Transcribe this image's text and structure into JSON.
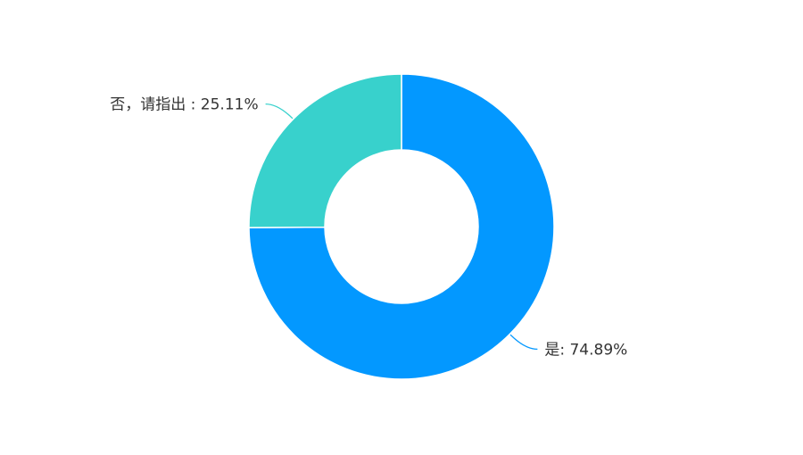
{
  "chart_data": {
    "type": "pie",
    "donut": true,
    "slices": [
      {
        "name": "是",
        "value": 74.89,
        "label": "是: 74.89%",
        "color": "#0398FF"
      },
      {
        "name": "否，请指出",
        "value": 25.11,
        "label": "否，请指出 : 25.11%",
        "color": "#38D1CC"
      }
    ],
    "start_angle": "12 o'clock",
    "direction": "clockwise",
    "legend": "none"
  }
}
